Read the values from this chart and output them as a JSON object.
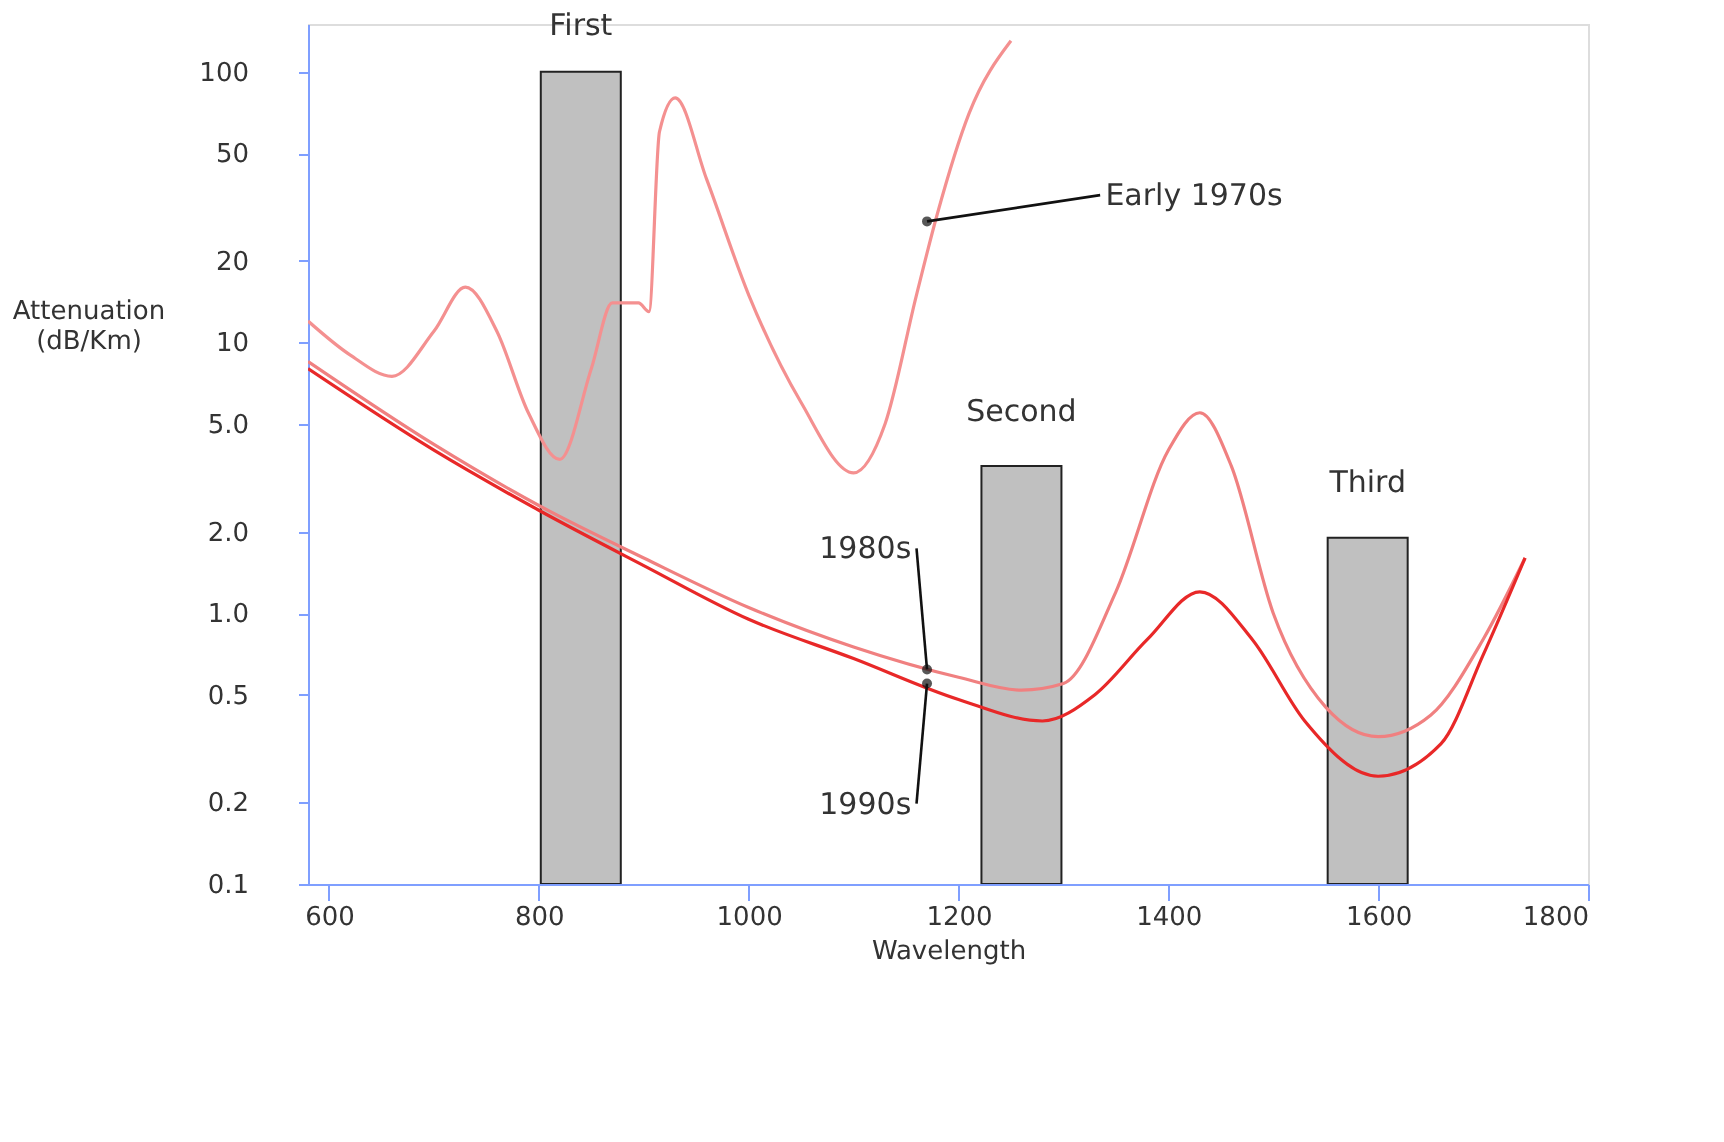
{
  "chart_data": {
    "type": "line",
    "xlabel": "Wavelength",
    "ylabel": "Attenuation (dB/Km)",
    "log": "y",
    "xlim": [
      580,
      1800
    ],
    "xticks": [
      600,
      800,
      1000,
      1200,
      1400,
      1600,
      1800
    ],
    "ylim": [
      0.1,
      150
    ],
    "yticks": [
      0.1,
      0.2,
      0.5,
      {
        "value": 1,
        "label": "1.0"
      },
      {
        "value": 2,
        "label": "2.0"
      },
      {
        "value": 5,
        "label": "5.0"
      },
      10,
      20,
      50,
      100
    ],
    "grid": false,
    "line_style": "solid",
    "marker": "none",
    "series": [
      {
        "type": "bar",
        "color": "#c0c0c0",
        "x": [
          840,
          1260,
          1590
        ],
        "values": [
          100,
          3.5,
          1.9
        ]
      },
      {
        "color": "#f49090",
        "x": [
          580,
          620,
          660,
          700,
          730,
          760,
          790,
          820,
          850,
          870,
          895,
          905,
          915,
          930,
          960,
          1000,
          1050,
          1100,
          1130,
          1160,
          1180,
          1210,
          1250
        ],
        "values": [
          12,
          9,
          7.5,
          11,
          16,
          11,
          5.5,
          3.7,
          8,
          14,
          14,
          13,
          60,
          80,
          40,
          15,
          6,
          3.3,
          5,
          15,
          30,
          70,
          130
        ]
      },
      {
        "color": "#f08080",
        "x": [
          580,
          700,
          800,
          900,
          1000,
          1100,
          1200,
          1260,
          1300,
          1350,
          1400,
          1430,
          1460,
          1500,
          1550,
          1600,
          1650,
          1700,
          1740
        ],
        "values": [
          8.5,
          4.2,
          2.5,
          1.6,
          1.05,
          0.75,
          0.58,
          0.52,
          0.55,
          1.2,
          4,
          5.5,
          3.5,
          1,
          0.45,
          0.35,
          0.42,
          0.8,
          1.6
        ]
      },
      {
        "color": "#e82828",
        "x": [
          580,
          700,
          800,
          900,
          1000,
          1100,
          1200,
          1280,
          1330,
          1380,
          1430,
          1480,
          1530,
          1600,
          1660,
          1700,
          1740
        ],
        "values": [
          8,
          4,
          2.4,
          1.5,
          0.95,
          0.68,
          0.48,
          0.4,
          0.5,
          0.8,
          1.2,
          0.8,
          0.4,
          0.25,
          0.33,
          0.7,
          1.6
        ]
      }
    ],
    "annotations": [
      {
        "text": "First",
        "x": 840,
        "y": 100
      },
      {
        "text": "Second",
        "x": 1260,
        "y": 3.5
      },
      {
        "text": "Third",
        "x": 1590,
        "y": 1.9
      },
      {
        "text": "Early 1970s",
        "x": 1170,
        "y": 28
      },
      {
        "text": "1980s",
        "x": 1170,
        "y": 0.62
      },
      {
        "text": "1990s",
        "x": 1170,
        "y": 0.55
      }
    ]
  }
}
